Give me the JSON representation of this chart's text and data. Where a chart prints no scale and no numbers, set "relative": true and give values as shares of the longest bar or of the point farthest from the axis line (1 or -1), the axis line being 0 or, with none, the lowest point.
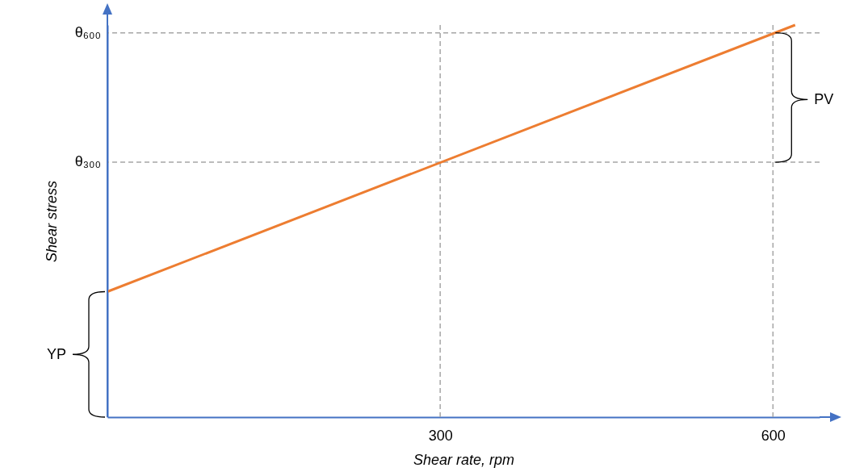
{
  "chart_data": {
    "type": "line",
    "relative": true,
    "xlabel": "Shear rate, rpm",
    "ylabel": "Shear stress",
    "x": [
      0,
      620
    ],
    "xlim": [
      0,
      642
    ],
    "xticks": [
      300,
      600
    ],
    "series": [
      {
        "color": "#ed7d31",
        "values": [
          0.32,
          1
        ]
      }
    ],
    "ref_lines": [
      {
        "axis": "y",
        "value": 0.65,
        "label": "θ₃₀₀",
        "color": "#a6a6a6",
        "line_style": "dashed"
      },
      {
        "axis": "y",
        "value": 0.98,
        "label": "θ₆₀₀",
        "color": "#a6a6a6",
        "line_style": "dashed"
      },
      {
        "axis": "x",
        "value": 300,
        "color": "#a6a6a6",
        "line_style": "dashed"
      },
      {
        "axis": "x",
        "value": 600,
        "color": "#a6a6a6",
        "line_style": "dashed"
      }
    ],
    "annotations": [
      "YP",
      {
        "text": "PV",
        "x": 600,
        "y": 0.81
      }
    ],
    "marker": "none",
    "line_style": "solid"
  }
}
